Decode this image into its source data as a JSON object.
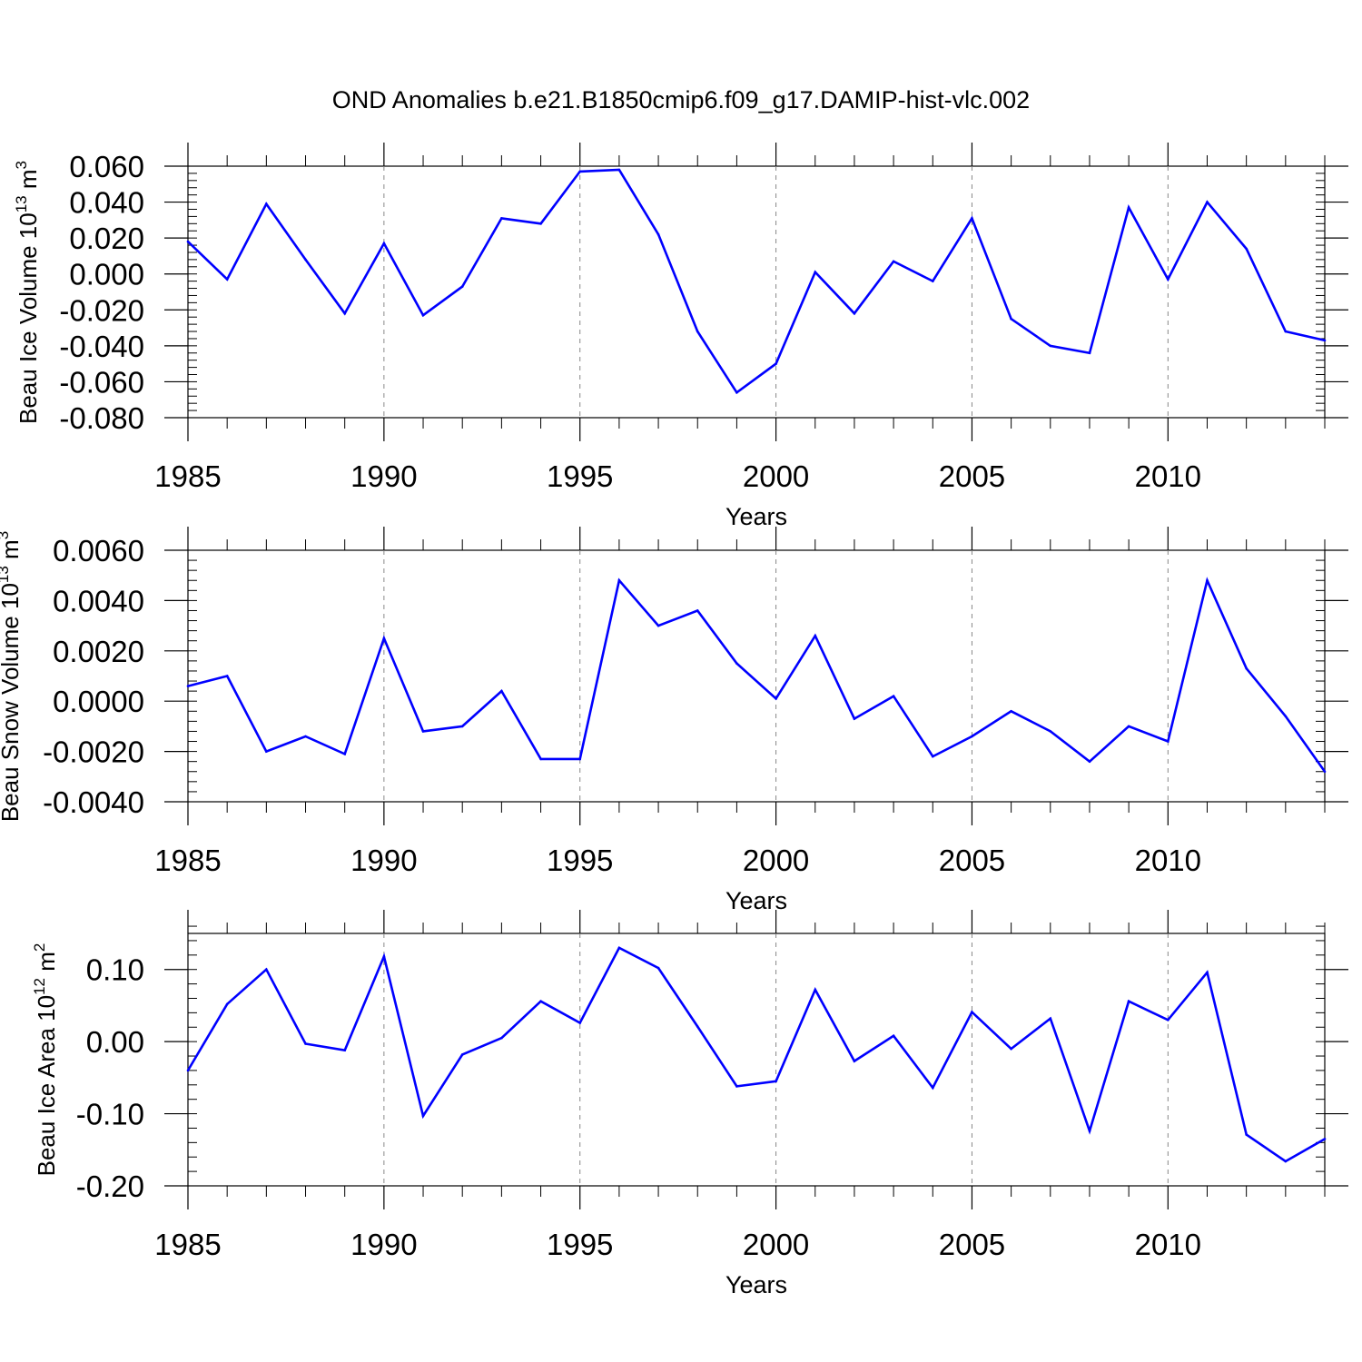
{
  "figure_title": "OND Anomalies b.e21.B1850cmip6.f09_g17.DAMIP-hist-vlc.002",
  "line_color": "#0000ff",
  "chart_data": [
    {
      "type": "line",
      "ylabel": "Beau Ice Volume 10",
      "ylabel_sup": "13",
      "ylabel_unit": "m",
      "ylabel_unit_sup": "3",
      "xlabel": "Years",
      "xlim": [
        1985,
        2014
      ],
      "ylim": [
        -0.08,
        0.06
      ],
      "x_ticks": [
        "1985",
        "1990",
        "1995",
        "2000",
        "2005",
        "2010"
      ],
      "y_ticks": [
        "0.060",
        "0.040",
        "0.020",
        "0.000",
        "-0.020",
        "-0.040",
        "-0.060",
        "-0.080"
      ],
      "grid": "vertical dashed at major x ticks",
      "x": [
        1985,
        1986,
        1987,
        1988,
        1989,
        1990,
        1991,
        1992,
        1993,
        1994,
        1995,
        1996,
        1997,
        1998,
        1999,
        2000,
        2001,
        2002,
        2003,
        2004,
        2005,
        2006,
        2007,
        2008,
        2009,
        2010,
        2011,
        2012,
        2013,
        2014
      ],
      "values": [
        0.018,
        -0.003,
        0.039,
        0.008,
        -0.022,
        0.017,
        -0.023,
        -0.007,
        0.031,
        0.028,
        0.057,
        0.058,
        0.022,
        -0.032,
        -0.066,
        -0.05,
        0.001,
        -0.022,
        0.007,
        -0.004,
        0.031,
        -0.025,
        -0.04,
        -0.044,
        0.037,
        -0.003,
        0.04,
        0.014,
        -0.032,
        -0.037
      ]
    },
    {
      "type": "line",
      "ylabel": "Beau Snow Volume 10",
      "ylabel_sup": "13",
      "ylabel_unit": "m",
      "ylabel_unit_sup": "3",
      "xlabel": "Years",
      "xlim": [
        1985,
        2014
      ],
      "ylim": [
        -0.004,
        0.006
      ],
      "x_ticks": [
        "1985",
        "1990",
        "1995",
        "2000",
        "2005",
        "2010"
      ],
      "y_ticks": [
        "0.0060",
        "0.0040",
        "0.0020",
        "0.0000",
        "-0.0020",
        "-0.0040"
      ],
      "grid": "vertical dashed at major x ticks",
      "x": [
        1985,
        1986,
        1987,
        1988,
        1989,
        1990,
        1991,
        1992,
        1993,
        1994,
        1995,
        1996,
        1997,
        1998,
        1999,
        2000,
        2001,
        2002,
        2003,
        2004,
        2005,
        2006,
        2007,
        2008,
        2009,
        2010,
        2011,
        2012,
        2013,
        2014
      ],
      "values": [
        0.0006,
        0.001,
        -0.002,
        -0.0014,
        -0.0021,
        0.0025,
        -0.0012,
        -0.001,
        0.0004,
        -0.0023,
        -0.0023,
        0.0048,
        0.003,
        0.0036,
        0.0015,
        0.0001,
        0.0026,
        -0.0007,
        0.0002,
        -0.0022,
        -0.0014,
        -0.0004,
        -0.0012,
        -0.0024,
        -0.001,
        -0.0016,
        0.0048,
        0.0013,
        -0.0006,
        -0.0028
      ]
    },
    {
      "type": "line",
      "ylabel": "Beau Ice Area 10",
      "ylabel_sup": "12",
      "ylabel_unit": "m",
      "ylabel_unit_sup": "2",
      "xlabel": "Years",
      "xlim": [
        1985,
        2014
      ],
      "ylim": [
        -0.2,
        0.15
      ],
      "x_ticks": [
        "1985",
        "1990",
        "1995",
        "2000",
        "2005",
        "2010"
      ],
      "y_ticks": [
        "0.10",
        "0.00",
        "-0.10",
        "-0.20"
      ],
      "grid": "vertical dashed at major x ticks",
      "x": [
        1985,
        1986,
        1987,
        1988,
        1989,
        1990,
        1991,
        1992,
        1993,
        1994,
        1995,
        1996,
        1997,
        1998,
        1999,
        2000,
        2001,
        2002,
        2003,
        2004,
        2005,
        2006,
        2007,
        2008,
        2009,
        2010,
        2011,
        2012,
        2013,
        2014
      ],
      "values": [
        -0.04,
        0.052,
        0.1,
        -0.003,
        -0.012,
        0.118,
        -0.103,
        -0.018,
        0.005,
        0.056,
        0.026,
        0.13,
        0.102,
        0.021,
        -0.062,
        -0.055,
        0.072,
        -0.027,
        0.008,
        -0.064,
        0.041,
        -0.01,
        0.032,
        -0.124,
        0.056,
        0.03,
        0.096,
        -0.129,
        -0.166,
        -0.135
      ]
    }
  ]
}
